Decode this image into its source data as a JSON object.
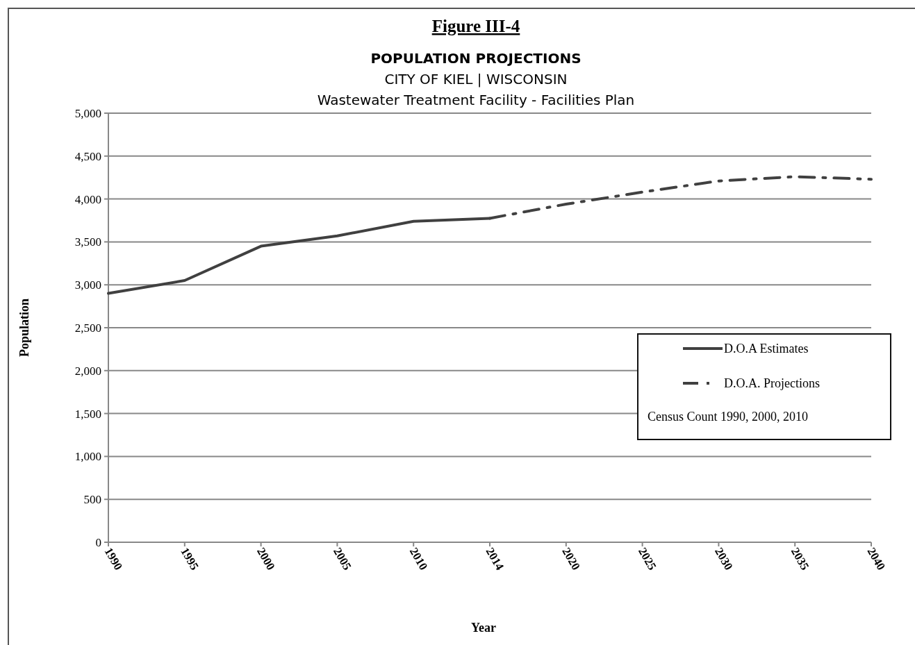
{
  "chart_data": {
    "type": "line",
    "title": "Figure III-4",
    "subtitle": "POPULATION PROJECTIONS\nCITY OF KIEL | WISCONSIN\nWastewater Treatment Facility - Facilities Plan",
    "xlabel": "Year",
    "ylabel": "Population",
    "categories": [
      "1990",
      "1995",
      "2000",
      "2005",
      "2010",
      "2014",
      "2020",
      "2025",
      "2030",
      "2035",
      "2040"
    ],
    "series": [
      {
        "name": "D.O.A Estimates",
        "color": "#404040",
        "line_style": "solid",
        "values": [
          2900,
          3050,
          3450,
          3570,
          3740,
          3775,
          null,
          null,
          null,
          null,
          null
        ]
      },
      {
        "name": "D.O.A. Projections",
        "color": "#404040",
        "line_style": "dashed",
        "values": [
          null,
          null,
          null,
          null,
          null,
          3775,
          3940,
          4080,
          4210,
          4260,
          4230
        ]
      }
    ],
    "ylim": [
      0,
      5000
    ],
    "yticks": [
      {
        "value": 0,
        "label": "0"
      },
      {
        "value": 500,
        "label": "500"
      },
      {
        "value": 1000,
        "label": "1,000"
      },
      {
        "value": 1500,
        "label": "1,500"
      },
      {
        "value": 2000,
        "label": "2,000"
      },
      {
        "value": 2500,
        "label": "2,500"
      },
      {
        "value": 3000,
        "label": "3,000"
      },
      {
        "value": 3500,
        "label": "3,500"
      },
      {
        "value": 4000,
        "label": "4,000"
      },
      {
        "value": 4500,
        "label": "4,500"
      },
      {
        "value": 5000,
        "label": "5,000"
      }
    ],
    "grid": "y",
    "legend": "right",
    "marker": "none",
    "annotations": [
      "Census Count 1990, 2000, 2010"
    ]
  }
}
